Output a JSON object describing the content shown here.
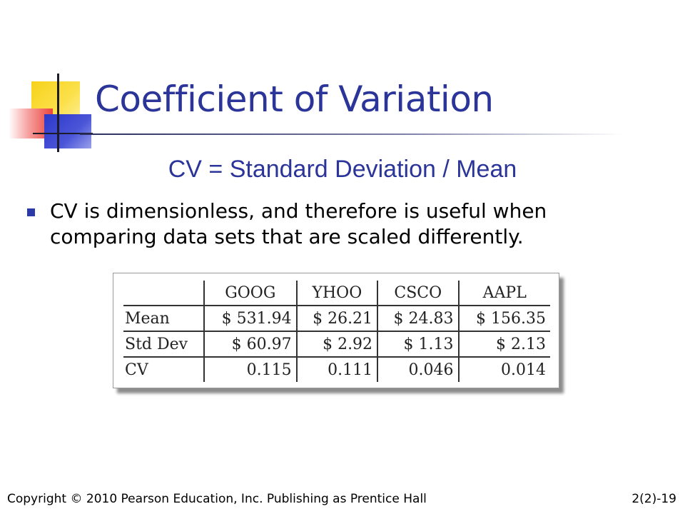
{
  "slide": {
    "title": "Coefficient of Variation",
    "formula": "CV = Standard Deviation / Mean",
    "bullets": [
      "CV is dimensionless, and therefore is useful when comparing data sets that are scaled differently."
    ],
    "bullet_icon": "square-bullet",
    "accent_color": "#2b3499"
  },
  "table": {
    "columns": [
      "",
      "GOOG",
      "YHOO",
      "CSCO",
      "AAPL"
    ],
    "rows": [
      {
        "label": "Mean",
        "values": [
          "$ 531.94",
          "$ 26.21",
          "$ 24.83",
          "$ 156.35"
        ]
      },
      {
        "label": "Std Dev",
        "values": [
          "$ 60.97",
          "$ 2.92",
          "$ 1.13",
          "$ 2.13"
        ]
      },
      {
        "label": "CV",
        "values": [
          "0.115",
          "0.111",
          "0.046",
          "0.014"
        ]
      }
    ]
  },
  "footer": {
    "copyright": "Copyright © 2010 Pearson Education, Inc.  Publishing as Prentice Hall",
    "page": "2(2)-19"
  }
}
